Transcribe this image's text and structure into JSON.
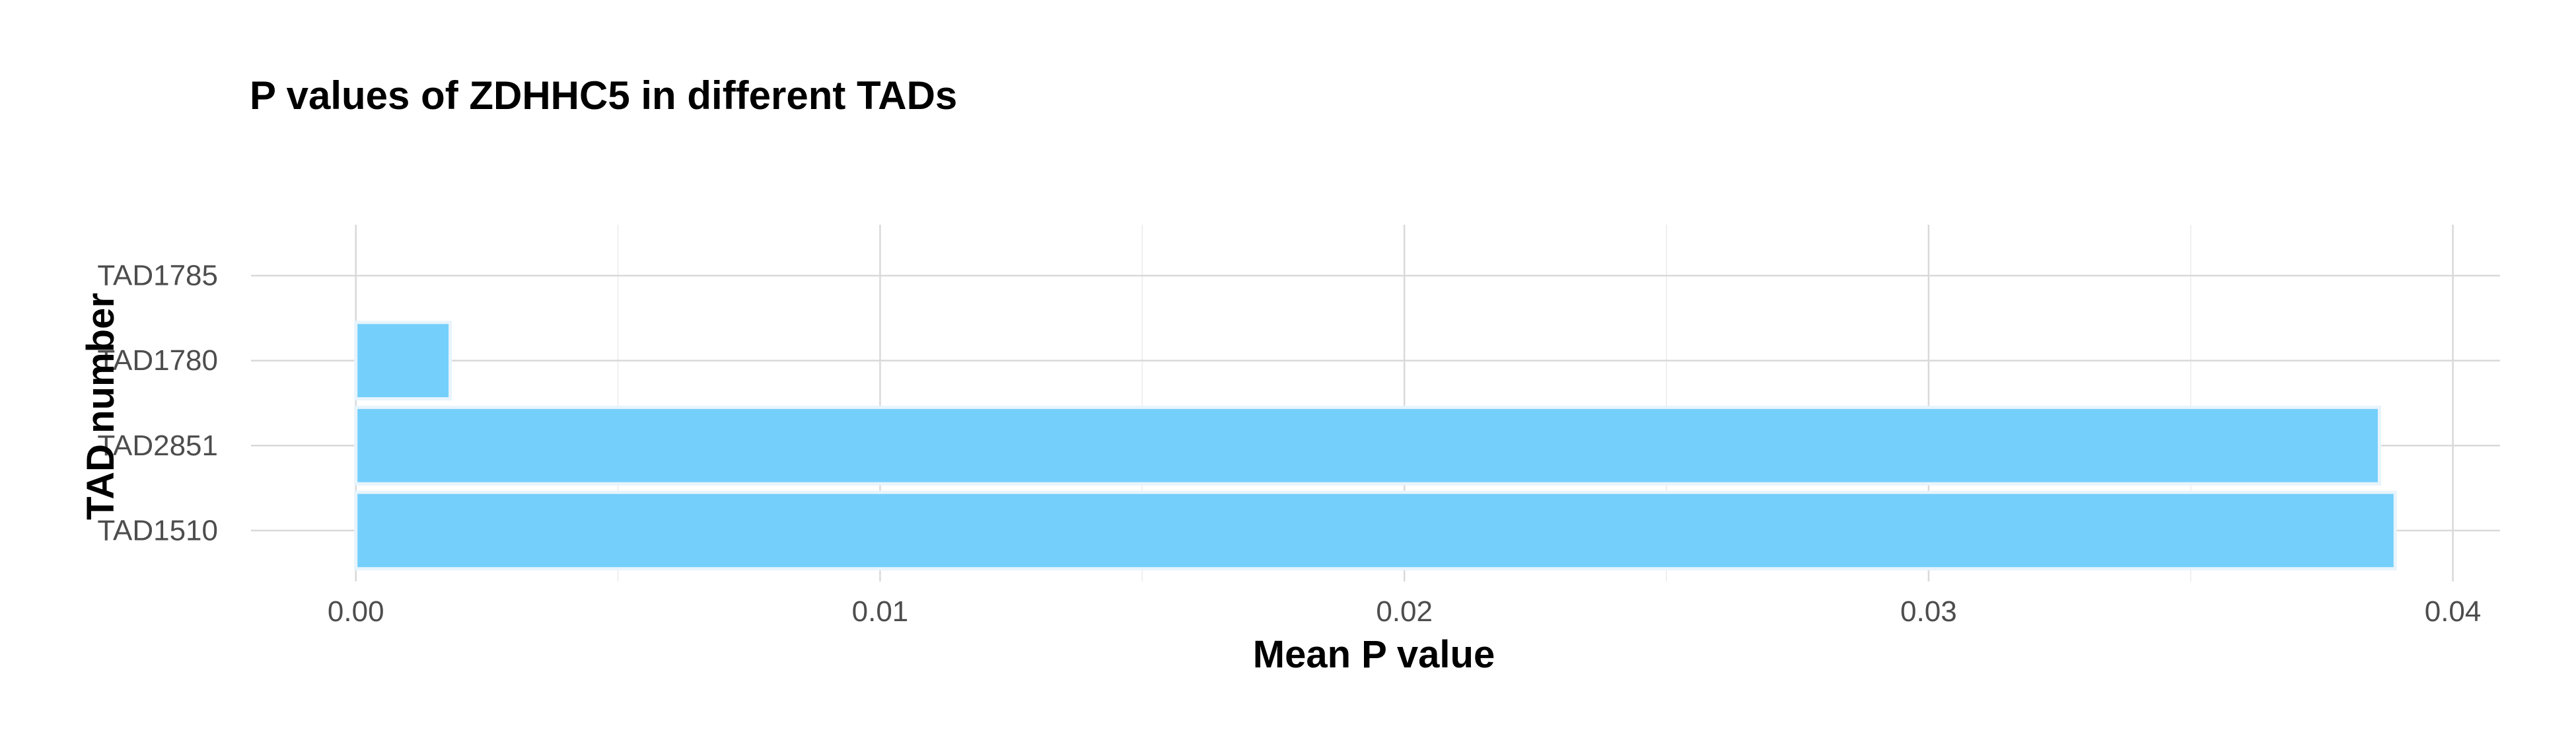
{
  "chart_data": {
    "type": "bar",
    "orientation": "horizontal",
    "title": "P values of ZDHHC5 in different TADs",
    "xlabel": "Mean P value",
    "ylabel": "TAD number",
    "categories": [
      "TAD1510",
      "TAD2851",
      "TAD1780",
      "TAD1785"
    ],
    "series": [
      {
        "values": [
          0.0389,
          0.0386,
          0.0018,
          0
        ]
      }
    ],
    "xlim": [
      -0.002,
      0.0409
    ],
    "x_ticks": [
      0.0,
      0.01,
      0.02,
      0.03,
      0.04
    ],
    "x_tick_labels": [
      "0.00",
      "0.01",
      "0.02",
      "0.03",
      "0.04"
    ],
    "grid": true,
    "legend": "none",
    "bar_color": "#74cffb"
  }
}
